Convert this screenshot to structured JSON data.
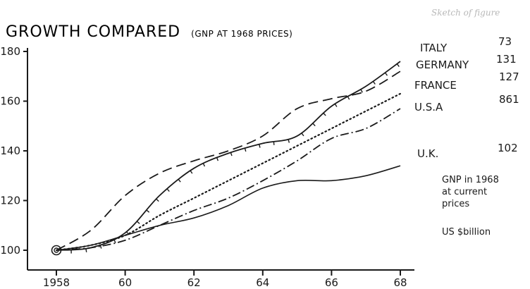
{
  "chart_data": {
    "type": "line",
    "title": "GROWTH COMPARED",
    "subtitle": "(GNP AT 1968 PRICES)",
    "faint_caption": "Sketch of figure",
    "x_tick_labels": [
      "1958",
      "60",
      "62",
      "64",
      "66",
      "68"
    ],
    "x_tick_values": [
      1958,
      1960,
      1962,
      1964,
      1966,
      1968
    ],
    "y_tick_labels": [
      "100",
      "120",
      "140",
      "160",
      "180"
    ],
    "y_tick_values": [
      100,
      120,
      140,
      160,
      180
    ],
    "xlim": [
      1958,
      1968
    ],
    "ylim": [
      95,
      180
    ],
    "grid": false,
    "series": [
      {
        "name": "ITALY",
        "gnp_1968": "73",
        "line_style": "solid-ticked",
        "x": [
          1958,
          1959,
          1960,
          1961,
          1962,
          1963,
          1964,
          1965,
          1966,
          1967,
          1968
        ],
        "values": [
          100,
          101,
          107,
          122,
          133,
          139,
          143,
          146,
          158,
          166,
          176
        ]
      },
      {
        "name": "GERMANY",
        "gnp_1968": "131",
        "line_style": "long-dash",
        "x": [
          1958,
          1959,
          1960,
          1961,
          1962,
          1963,
          1964,
          1965,
          1966,
          1967,
          1968
        ],
        "values": [
          100,
          108,
          122,
          131,
          136,
          140,
          146,
          157,
          161,
          164,
          172
        ]
      },
      {
        "name": "FRANCE",
        "gnp_1968": "127",
        "line_style": "dotted",
        "x": [
          1958,
          1959,
          1960,
          1961,
          1962,
          1963,
          1964,
          1965,
          1966,
          1967,
          1968
        ],
        "values": [
          100,
          102,
          106,
          114,
          121,
          128,
          135,
          142,
          149,
          156,
          163
        ]
      },
      {
        "name": "U.S.A",
        "gnp_1968": "861",
        "line_style": "dash-dot",
        "x": [
          1958,
          1959,
          1960,
          1961,
          1962,
          1963,
          1964,
          1965,
          1966,
          1967,
          1968
        ],
        "values": [
          100,
          101,
          104,
          110,
          116,
          121,
          128,
          136,
          145,
          149,
          157
        ]
      },
      {
        "name": "U.K.",
        "gnp_1968": "102",
        "line_style": "solid",
        "x": [
          1958,
          1959,
          1960,
          1961,
          1962,
          1963,
          1964,
          1965,
          1966,
          1967,
          1968
        ],
        "values": [
          100,
          102,
          106,
          110,
          113,
          118,
          125,
          128,
          128,
          130,
          134
        ]
      }
    ],
    "notes": [
      "GNP in 1968",
      "at current",
      "prices",
      "US $billion"
    ]
  }
}
